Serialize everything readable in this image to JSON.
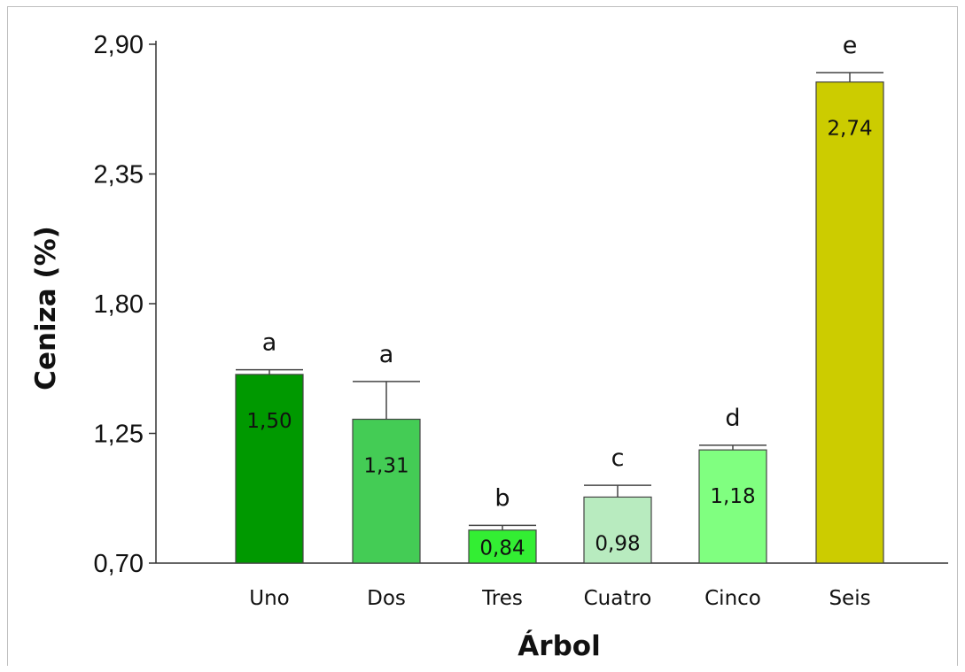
{
  "chart_data": {
    "type": "bar",
    "title": "",
    "xlabel": "Árbol",
    "ylabel": "Ceniza (%)",
    "ylim": [
      0.7,
      2.9
    ],
    "yticks": [
      0.7,
      1.25,
      1.8,
      2.35,
      2.9
    ],
    "ytick_labels": [
      "0,70",
      "1,25",
      "1,80",
      "2,35",
      "2,90"
    ],
    "categories": [
      "Uno",
      "Dos",
      "Tres",
      "Cuatro",
      "Cinco",
      "Seis"
    ],
    "values": [
      1.5,
      1.31,
      0.84,
      0.98,
      1.18,
      2.74
    ],
    "value_labels": [
      "1,50",
      "1,31",
      "0,84",
      "0,98",
      "1,18",
      "2,74"
    ],
    "error_upper": [
      1.52,
      1.47,
      0.86,
      1.03,
      1.2,
      2.78
    ],
    "significance_letters": [
      "a",
      "a",
      "b",
      "c",
      "d",
      "e"
    ],
    "colors": [
      "#009900",
      "#44cc55",
      "#33ee33",
      "#b8ebbf",
      "#80ff80",
      "#cccc00"
    ],
    "grid": false,
    "legend": "none"
  }
}
